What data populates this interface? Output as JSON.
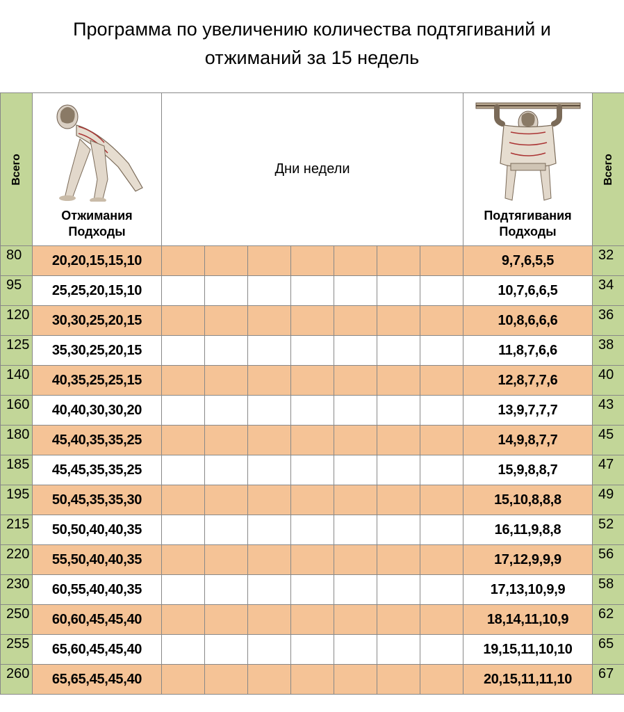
{
  "title": "Программа по увеличению количества подтягиваний и отжиманий за 15 недель",
  "totals_label": "Всего",
  "days_label": "Дни недели",
  "pushups": {
    "name": "Отжимания",
    "subtitle": "Подходы"
  },
  "pullups": {
    "name": "Подтягивания",
    "subtitle": "Подходы"
  },
  "day_count": 7,
  "colors": {
    "green": "#c2d698",
    "orange": "#f5c396",
    "white": "#ffffff",
    "border": "#888888",
    "text": "#000000"
  },
  "rows": [
    {
      "push_total": "80",
      "push_sets": "20,20,15,15,10",
      "pull_sets": "9,7,6,5,5",
      "pull_total": "32"
    },
    {
      "push_total": "95",
      "push_sets": "25,25,20,15,10",
      "pull_sets": "10,7,6,6,5",
      "pull_total": "34"
    },
    {
      "push_total": "120",
      "push_sets": "30,30,25,20,15",
      "pull_sets": "10,8,6,6,6",
      "pull_total": "36"
    },
    {
      "push_total": "125",
      "push_sets": "35,30,25,20,15",
      "pull_sets": "11,8,7,6,6",
      "pull_total": "38"
    },
    {
      "push_total": "140",
      "push_sets": "40,35,25,25,15",
      "pull_sets": "12,8,7,7,6",
      "pull_total": "40"
    },
    {
      "push_total": "160",
      "push_sets": "40,40,30,30,20",
      "pull_sets": "13,9,7,7,7",
      "pull_total": "43"
    },
    {
      "push_total": "180",
      "push_sets": "45,40,35,35,25",
      "pull_sets": "14,9,8,7,7",
      "pull_total": "45"
    },
    {
      "push_total": "185",
      "push_sets": "45,45,35,35,25",
      "pull_sets": "15,9,8,8,7",
      "pull_total": "47"
    },
    {
      "push_total": "195",
      "push_sets": "50,45,35,35,30",
      "pull_sets": "15,10,8,8,8",
      "pull_total": "49"
    },
    {
      "push_total": "215",
      "push_sets": "50,50,40,40,35",
      "pull_sets": "16,11,9,8,8",
      "pull_total": "52"
    },
    {
      "push_total": "220",
      "push_sets": "55,50,40,40,35",
      "pull_sets": "17,12,9,9,9",
      "pull_total": "56"
    },
    {
      "push_total": "230",
      "push_sets": "60,55,40,40,35",
      "pull_sets": "17,13,10,9,9",
      "pull_total": "58"
    },
    {
      "push_total": "250",
      "push_sets": "60,60,45,45,40",
      "pull_sets": "18,14,11,10,9",
      "pull_total": "62"
    },
    {
      "push_total": "255",
      "push_sets": "65,60,45,45,40",
      "pull_sets": "19,15,11,10,10",
      "pull_total": "65"
    },
    {
      "push_total": "260",
      "push_sets": "65,65,45,45,40",
      "pull_sets": "20,15,11,11,10",
      "pull_total": "67"
    }
  ]
}
